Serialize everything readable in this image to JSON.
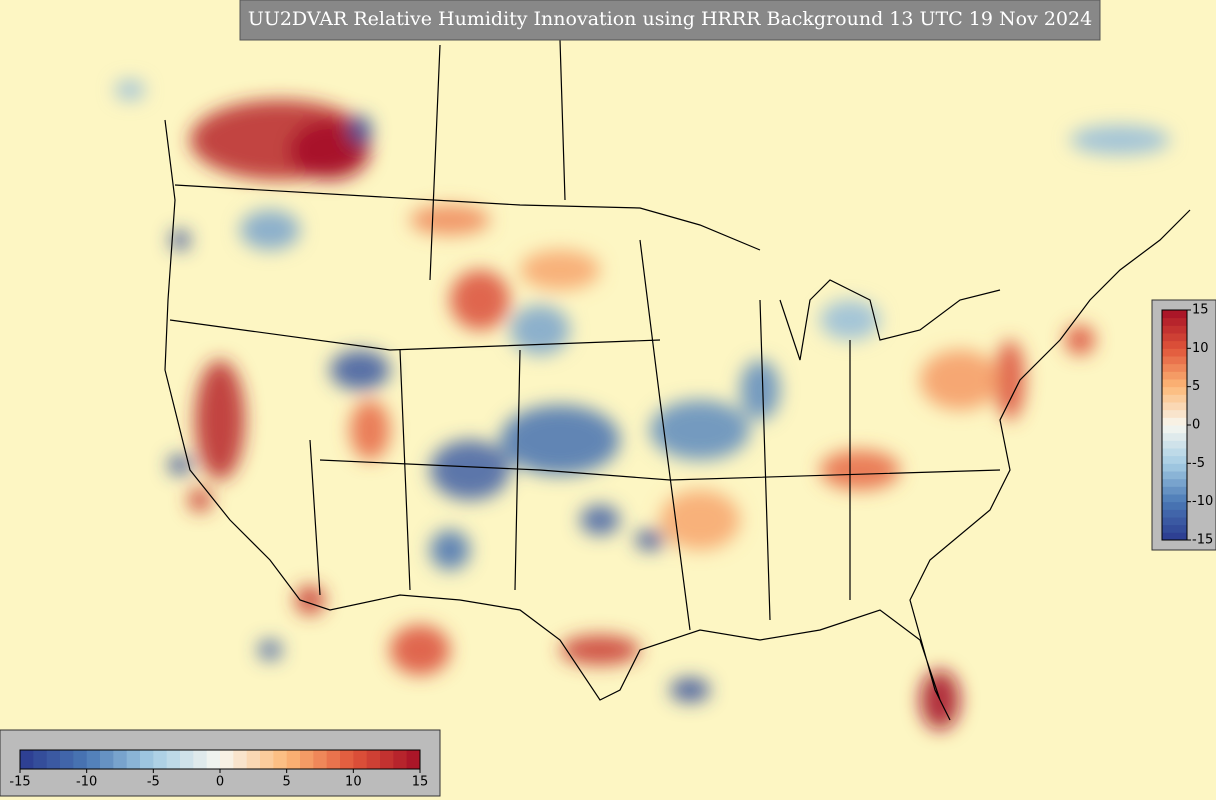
{
  "title": "UU2DVAR Relative Humidity Innovation using HRRR Background 13 UTC 19 Nov 2024",
  "horizontal_colorbar": {
    "range": [
      -15,
      15
    ],
    "ticks": [
      -15,
      -10,
      -5,
      0,
      5,
      10,
      15
    ]
  },
  "vertical_colorbar": {
    "range": [
      -15,
      15
    ],
    "ticks": [
      -15,
      -10,
      -5,
      0,
      5,
      10,
      15
    ]
  }
}
